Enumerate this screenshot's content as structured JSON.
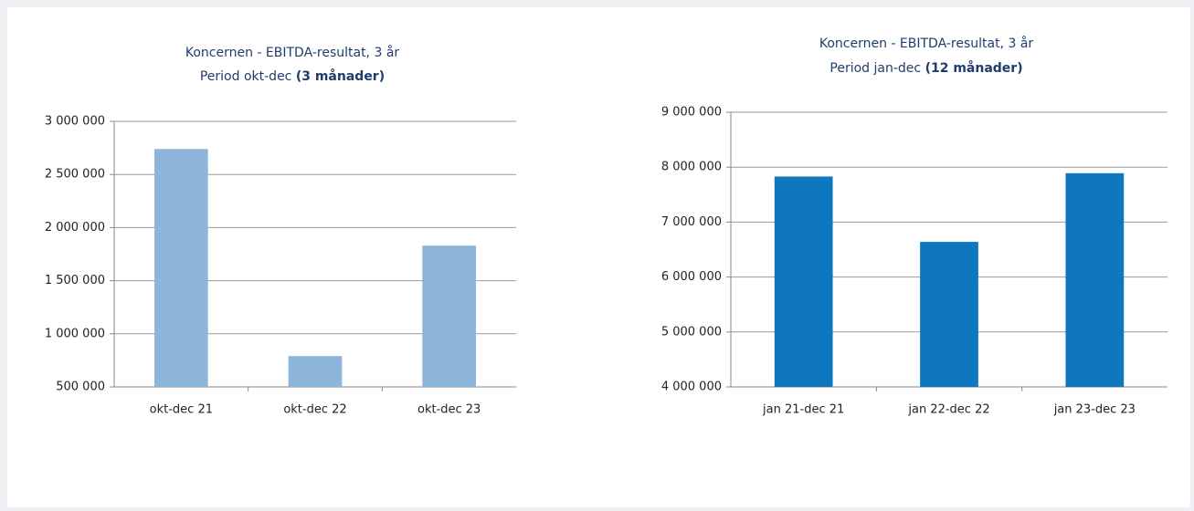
{
  "chart_data": [
    {
      "type": "bar",
      "title": "Koncernen - EBITDA-resultat, 3 år",
      "subtitle": "Period okt-dec",
      "subtitle_bold": "(3 månader)",
      "categories": [
        "okt-dec 21",
        "okt-dec 22",
        "okt-dec 23"
      ],
      "values": [
        2740000,
        790000,
        1830000
      ],
      "color": "#8db4db",
      "ylim": [
        500000,
        3000000
      ],
      "yticks": [
        {
          "value": 500000,
          "label": "500 000"
        },
        {
          "value": 1000000,
          "label": "1 000 000"
        },
        {
          "value": 1500000,
          "label": "1 500 000"
        },
        {
          "value": 2000000,
          "label": "2 000 000"
        },
        {
          "value": 2500000,
          "label": "2 500 000"
        },
        {
          "value": 3000000,
          "label": "3 000 000"
        }
      ],
      "grid": true
    },
    {
      "type": "bar",
      "title": "Koncernen - EBITDA-resultat, 3 år",
      "subtitle": "Period jan-dec",
      "subtitle_bold": "(12 månader)",
      "categories": [
        "jan 21-dec 21",
        "jan 22-dec 22",
        "jan 23-dec 23"
      ],
      "values": [
        7830000,
        6640000,
        7890000
      ],
      "color": "#0e77bd",
      "ylim": [
        4000000,
        9000000
      ],
      "yticks": [
        {
          "value": 4000000,
          "label": "4 000 000"
        },
        {
          "value": 5000000,
          "label": "5 000 000"
        },
        {
          "value": 6000000,
          "label": "6 000 000"
        },
        {
          "value": 7000000,
          "label": "7 000 000"
        },
        {
          "value": 8000000,
          "label": "8 000 000"
        },
        {
          "value": 9000000,
          "label": "9 000 000"
        }
      ],
      "grid": true
    }
  ]
}
